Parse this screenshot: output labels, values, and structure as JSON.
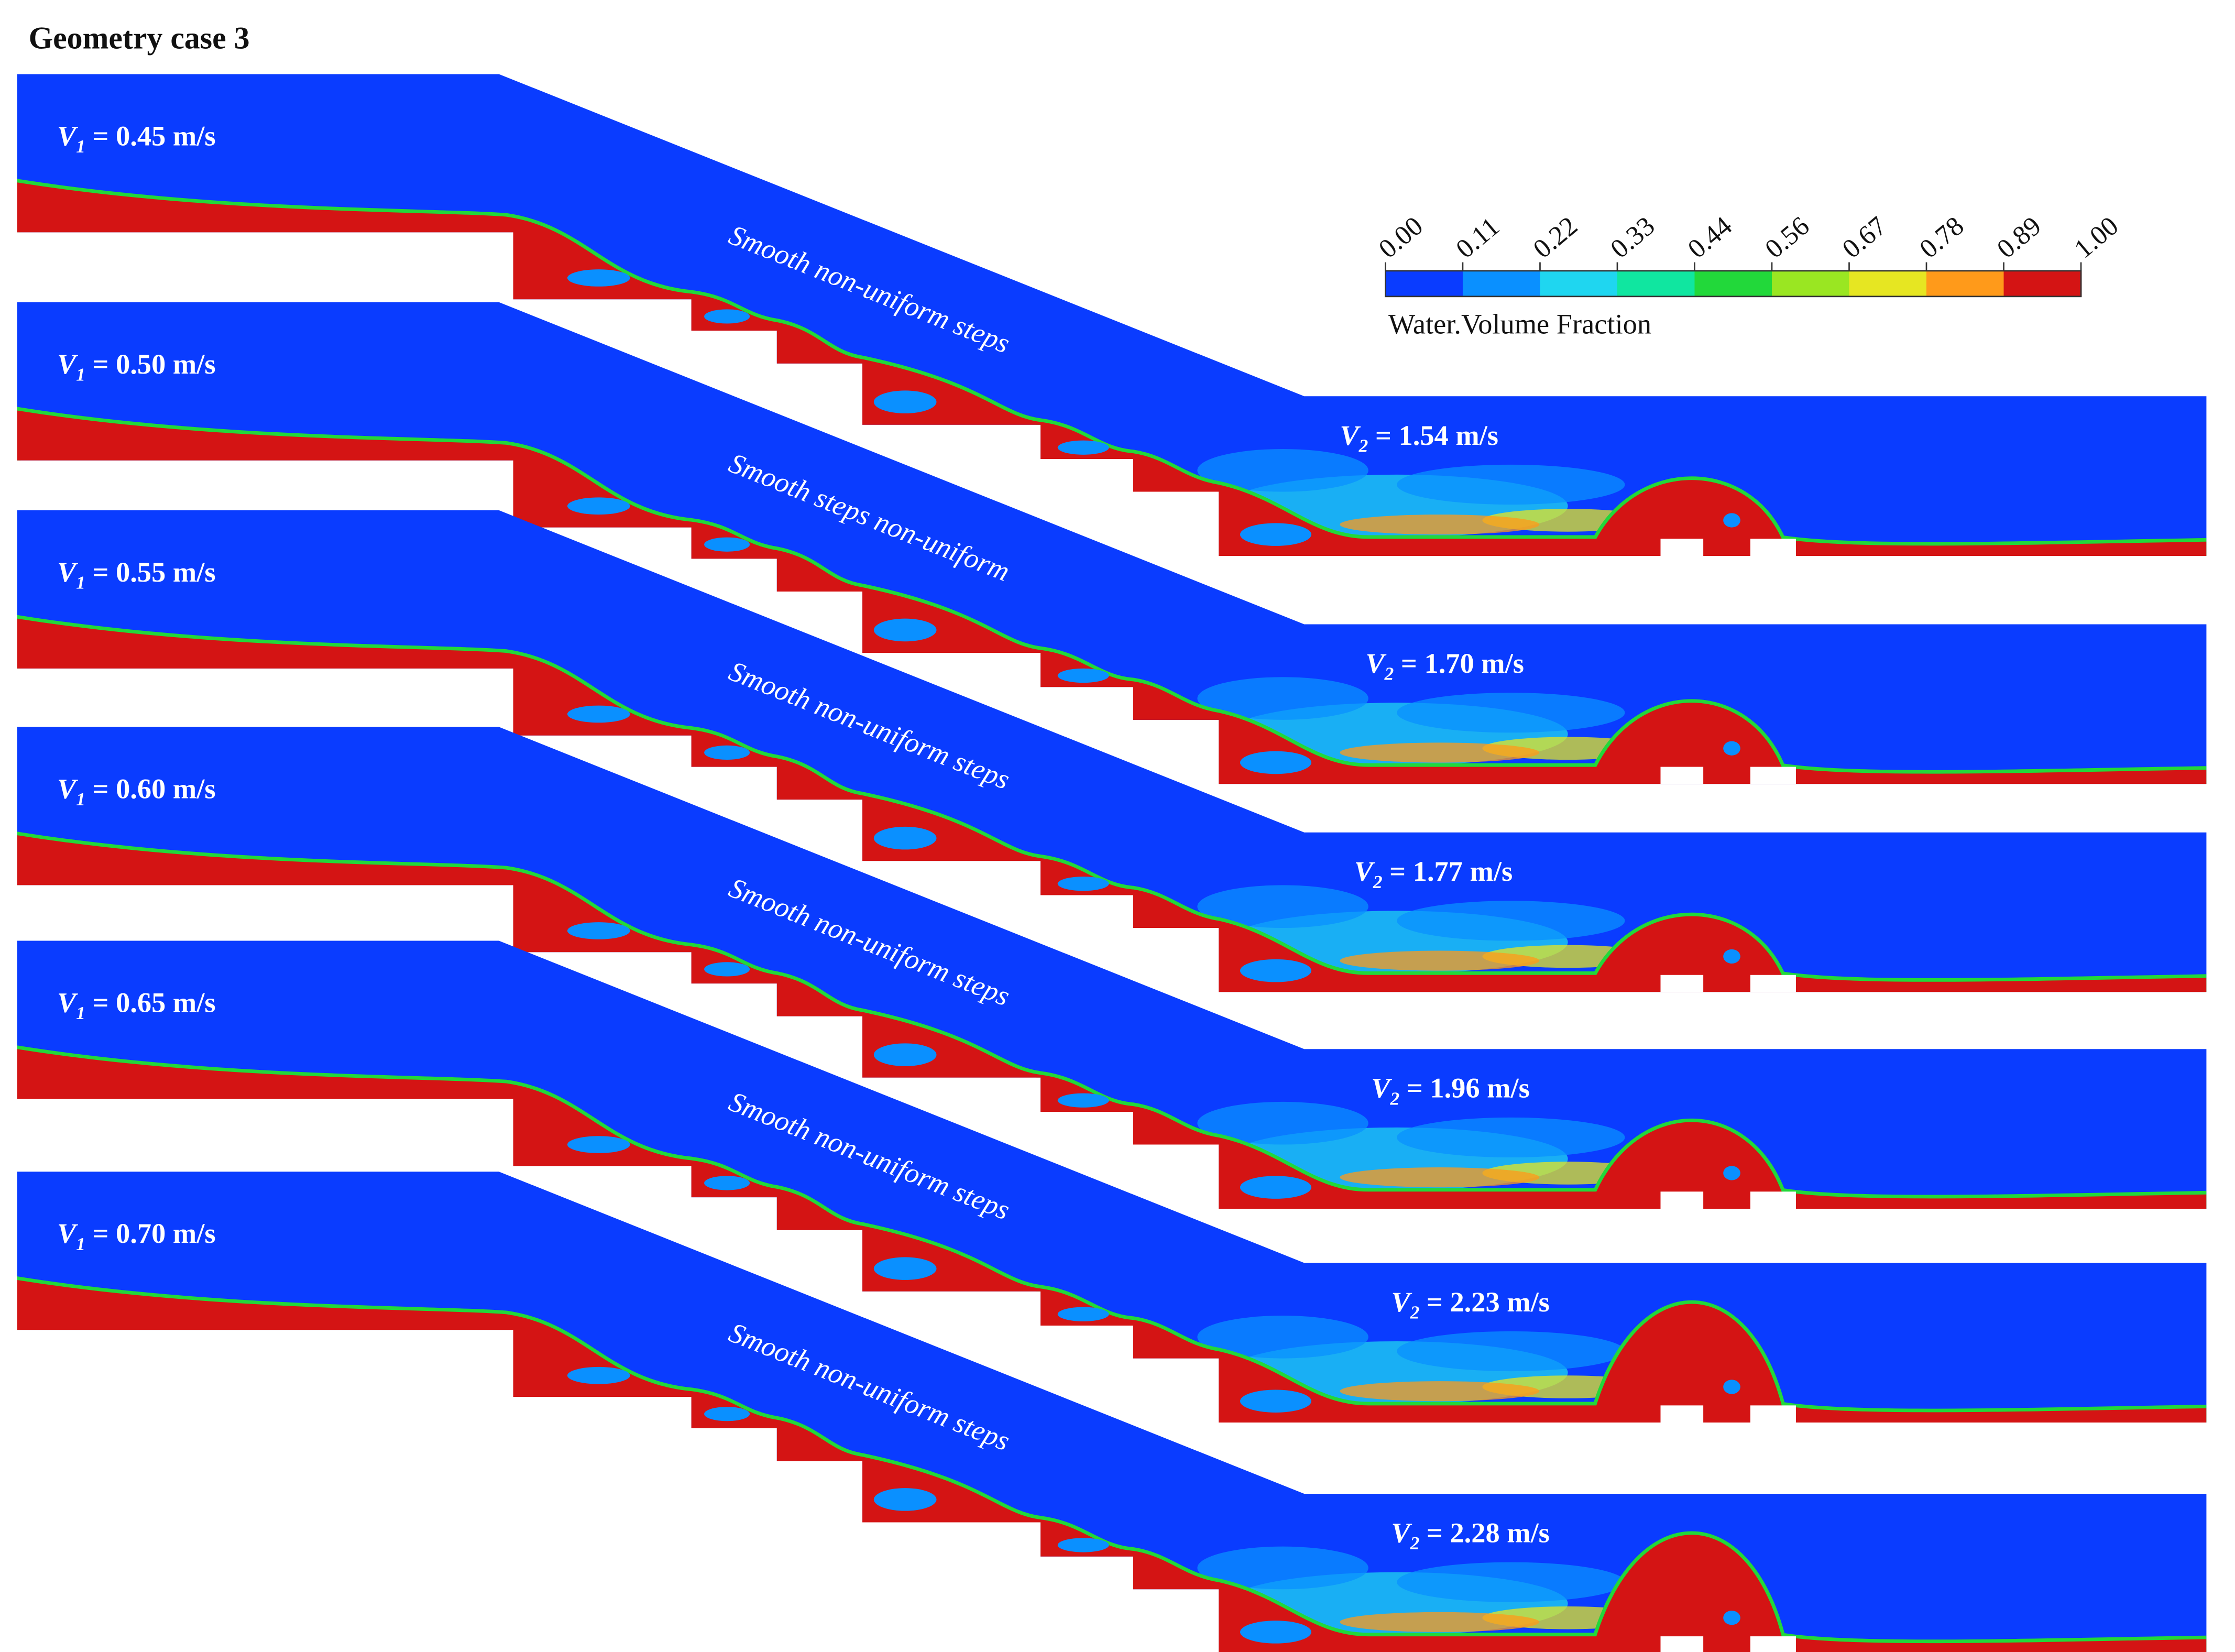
{
  "title": "Geometry  case 3",
  "colorbar": {
    "ticks": [
      "0.00",
      "0.11",
      "0.22",
      "0.33",
      "0.44",
      "0.56",
      "0.67",
      "0.78",
      "0.89",
      "1.00"
    ],
    "label": "Water.Volume Fraction",
    "colors": [
      "#0a3cff",
      "#0a90ff",
      "#1fd6f0",
      "#10e6a0",
      "#22d83a",
      "#9ae622",
      "#e6e622",
      "#ff9a1a",
      "#d41414"
    ]
  },
  "panels": [
    {
      "inlet": {
        "symbol": "V",
        "subscript": "1",
        "value": " = 0.45 m/s"
      },
      "outlet": {
        "symbol": "V",
        "subscript": "2",
        "value": " = 1.54 m/s"
      },
      "annotation": "Smooth non-uniform steps"
    },
    {
      "inlet": {
        "symbol": "V",
        "subscript": "1",
        "value": " = 0.50 m/s"
      },
      "outlet": {
        "symbol": "V",
        "subscript": "2",
        "value": " = 1.70 m/s"
      },
      "annotation": "Smooth steps non-uniform"
    },
    {
      "inlet": {
        "symbol": "V",
        "subscript": "1",
        "value": " = 0.55 m/s"
      },
      "outlet": {
        "symbol": "V",
        "subscript": "2",
        "value": " = 1.77 m/s"
      },
      "annotation": "Smooth non-uniform steps"
    },
    {
      "inlet": {
        "symbol": "V",
        "subscript": "1",
        "value": " = 0.60 m/s"
      },
      "outlet": {
        "symbol": "V",
        "subscript": "2",
        "value": " = 1.96 m/s"
      },
      "annotation": "Smooth non-uniform steps"
    },
    {
      "inlet": {
        "symbol": "V",
        "subscript": "1",
        "value": " = 0.65 m/s"
      },
      "outlet": {
        "symbol": "V",
        "subscript": "2",
        "value": " = 2.23 m/s"
      },
      "annotation": "Smooth non-uniform steps"
    },
    {
      "inlet": {
        "symbol": "V",
        "subscript": "1",
        "value": " = 0.70 m/s"
      },
      "outlet": {
        "symbol": "V",
        "subscript": "2",
        "value": " = 2.28 m/s"
      },
      "annotation": "Smooth non-uniform steps"
    }
  ]
}
